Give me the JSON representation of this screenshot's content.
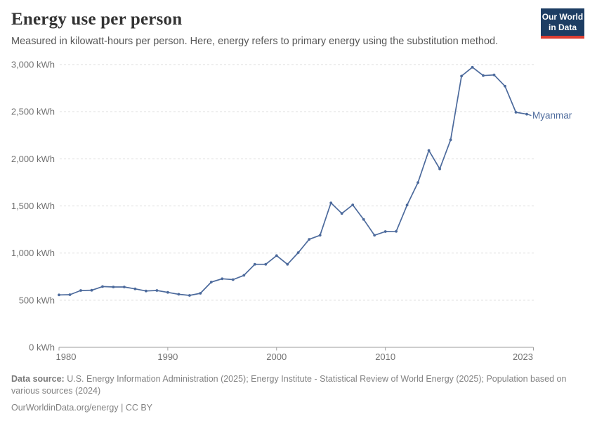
{
  "header": {
    "title": "Energy use per person",
    "subtitle": "Measured in kilowatt-hours per person. Here, energy refers to primary energy using the substitution method."
  },
  "logo": {
    "line1": "Our World",
    "line2": "in Data"
  },
  "colors": {
    "line": "#4c6a9c",
    "title_text": "#333333",
    "subtitle_text": "#575757",
    "axis_text": "#727272",
    "gridline": "#dcdcdc",
    "axis_line": "#9e9e9e",
    "logo_bg": "#1d3d63",
    "logo_accent": "#dc3e32",
    "footer_text": "#838383"
  },
  "chart_data": {
    "type": "line",
    "title": "Energy use per person",
    "xlabel": "",
    "ylabel": "kWh",
    "xlim": [
      1980,
      2023
    ],
    "ylim": [
      0,
      3000
    ],
    "grid": "horizontal dashed",
    "legend_position": "end-of-line label",
    "x_ticks": [
      {
        "value": 1980,
        "label": "1980"
      },
      {
        "value": 1990,
        "label": "1990"
      },
      {
        "value": 2000,
        "label": "2000"
      },
      {
        "value": 2010,
        "label": "2010"
      },
      {
        "value": 2023,
        "label": "2023"
      }
    ],
    "y_ticks": [
      {
        "value": 0,
        "label": "0 kWh"
      },
      {
        "value": 500,
        "label": "500 kWh"
      },
      {
        "value": 1000,
        "label": "1,000 kWh"
      },
      {
        "value": 1500,
        "label": "1,500 kWh"
      },
      {
        "value": 2000,
        "label": "2,000 kWh"
      },
      {
        "value": 2500,
        "label": "2,500 kWh"
      },
      {
        "value": 3000,
        "label": "3,000 kWh"
      }
    ],
    "series": [
      {
        "name": "Myanmar",
        "color": "#4c6a9c",
        "years": [
          1980,
          1981,
          1982,
          1983,
          1984,
          1985,
          1986,
          1987,
          1988,
          1989,
          1990,
          1991,
          1992,
          1993,
          1994,
          1995,
          1996,
          1997,
          1998,
          1999,
          2000,
          2001,
          2002,
          2003,
          2004,
          2005,
          2006,
          2007,
          2008,
          2009,
          2010,
          2011,
          2012,
          2013,
          2014,
          2015,
          2016,
          2017,
          2018,
          2019,
          2020,
          2021,
          2022,
          2023
        ],
        "values": [
          556,
          558,
          603,
          605,
          645,
          640,
          640,
          620,
          598,
          603,
          583,
          563,
          551,
          573,
          692,
          727,
          718,
          764,
          881,
          881,
          973,
          881,
          1005,
          1146,
          1189,
          1533,
          1420,
          1511,
          1357,
          1189,
          1228,
          1230,
          1509,
          1749,
          2089,
          1893,
          2201,
          2878,
          2972,
          2883,
          2890,
          2771,
          2494,
          2474
        ]
      }
    ]
  },
  "footer": {
    "datasource_label": "Data source:",
    "datasource_text": "U.S. Energy Information Administration (2025); Energy Institute - Statistical Review of World Energy (2025); Population based on various sources (2024)",
    "link": "OurWorldinData.org/energy",
    "license_suffix": " | CC BY"
  }
}
